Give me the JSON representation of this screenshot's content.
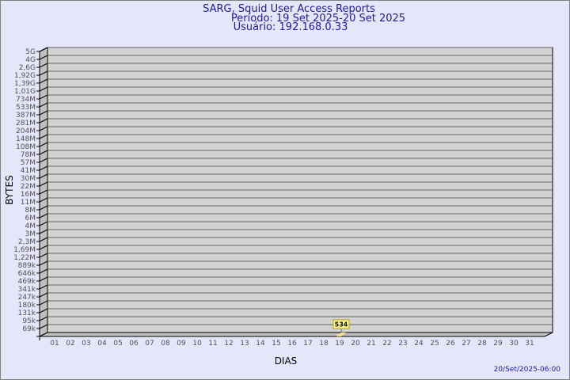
{
  "chart_data": {
    "type": "bar",
    "title": "SARG, Squid User Access Reports",
    "subtitle_period": "Período: 19 Set 2025-20 Set 2025",
    "subtitle_user": "Usuário: 192.168.0.33",
    "xlabel": "DIAS",
    "ylabel": "BYTES",
    "y_scale": "log",
    "y_tick_labels": [
      "5G",
      "4G",
      "2,6G",
      "1,92G",
      "1,39G",
      "1,01G",
      "734M",
      "533M",
      "387M",
      "281M",
      "204M",
      "148M",
      "108M",
      "78M",
      "57M",
      "41M",
      "30M",
      "22M",
      "16M",
      "11M",
      "8M",
      "6M",
      "4M",
      "3M",
      "2,3M",
      "1,69M",
      "1,22M",
      "889k",
      "646k",
      "469k",
      "341k",
      "247k",
      "180k",
      "131k",
      "95k",
      "69k"
    ],
    "categories": [
      "01",
      "02",
      "03",
      "04",
      "05",
      "06",
      "07",
      "08",
      "09",
      "10",
      "11",
      "12",
      "13",
      "14",
      "15",
      "16",
      "17",
      "18",
      "19",
      "20",
      "21",
      "22",
      "23",
      "24",
      "25",
      "26",
      "27",
      "28",
      "29",
      "30",
      "31"
    ],
    "points": [
      {
        "x": "19",
        "value": 534,
        "label": "534"
      }
    ],
    "grid": true,
    "colors": {
      "background": "#e6e6fa",
      "plot": "#d3d3d3",
      "bar": "#ffe08a",
      "label_bg": "#ffff99",
      "title": "#1a1aa0"
    }
  },
  "footer": {
    "timestamp": "20/Set/2025-06:00"
  }
}
